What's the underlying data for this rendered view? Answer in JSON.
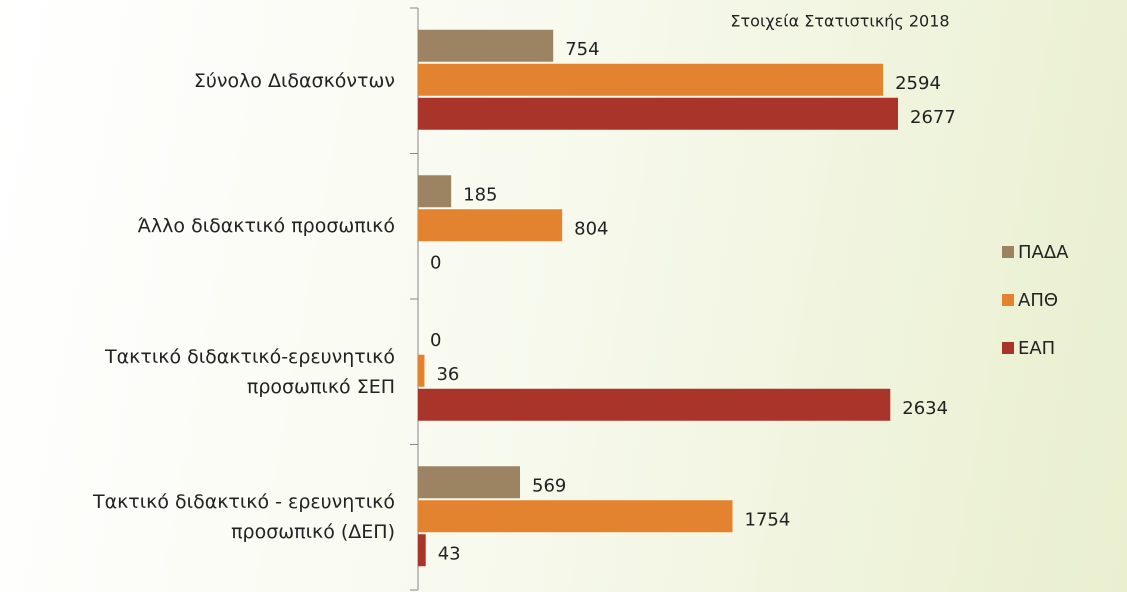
{
  "chart_data": {
    "type": "hbar",
    "title": "Στοιχεία Στατιστικής 2018",
    "categories": [
      "Σύνολο Διδασκόντων",
      "Άλλο διδακτικό προσωπικό",
      "Τακτικό διδακτικό-ερευνητικό προσωπικό ΣΕΠ",
      "Τακτικό διδακτικό - ερευνητικό προσωπικό (ΔΕΠ)"
    ],
    "series": [
      {
        "name": "ΠΑΔΑ",
        "color": "#9c8462",
        "values": [
          754,
          185,
          0,
          569
        ]
      },
      {
        "name": "ΑΠΘ",
        "color": "#e3832f",
        "values": [
          2594,
          804,
          36,
          1754
        ]
      },
      {
        "name": "ΕΑΠ",
        "color": "#a9352a",
        "values": [
          2677,
          0,
          2634,
          43
        ]
      }
    ],
    "legend": "right"
  }
}
